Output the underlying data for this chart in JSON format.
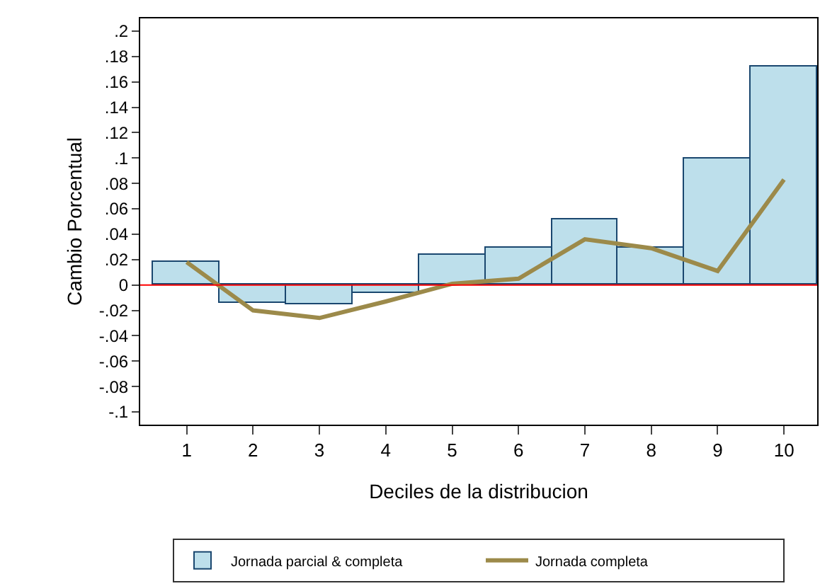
{
  "chart_data": {
    "type": "bar",
    "xlabel": "Deciles de la distribucion",
    "ylabel": "Cambio Porcentual",
    "x": [
      1,
      2,
      3,
      4,
      5,
      6,
      7,
      8,
      9,
      10
    ],
    "series": [
      {
        "name": "Jornada parcial & completa",
        "color": "#bddfeb",
        "values": [
          0.018,
          -0.014,
          -0.015,
          -0.006,
          0.024,
          0.029,
          0.052,
          0.029,
          0.1,
          0.172
        ]
      },
      {
        "name": "Jornada completa",
        "type": "line",
        "color": "#9c8a4a",
        "values": [
          0.018,
          -0.02,
          -0.026,
          -0.013,
          0.001,
          0.005,
          0.036,
          0.029,
          0.011,
          0.083
        ]
      }
    ],
    "xlim": [
      0.3,
      10.5
    ],
    "xticks": [
      1,
      2,
      3,
      4,
      5,
      6,
      7,
      8,
      9,
      10
    ],
    "ylim": [
      -0.11,
      0.21
    ],
    "yticks": [
      {
        "value": -0.1,
        "label": "-.1"
      },
      {
        "value": -0.08,
        "label": "-.08"
      },
      {
        "value": -0.06,
        "label": "-.06"
      },
      {
        "value": -0.04,
        "label": "-.04"
      },
      {
        "value": -0.02,
        "label": "-.02"
      },
      0,
      {
        "value": 0.02,
        "label": ".02"
      },
      {
        "value": 0.04,
        "label": ".04"
      },
      {
        "value": 0.06,
        "label": ".06"
      },
      {
        "value": 0.08,
        "label": ".08"
      },
      {
        "value": 0.1,
        "label": ".1"
      },
      {
        "value": 0.12,
        "label": ".12"
      },
      {
        "value": 0.14,
        "label": ".14"
      },
      {
        "value": 0.16,
        "label": ".16"
      },
      {
        "value": 0.18,
        "label": ".18"
      },
      {
        "value": 0.2,
        "label": ".2"
      }
    ],
    "ref_lines": [
      {
        "axis": "y",
        "value": 0,
        "color": "#ff0000"
      }
    ],
    "grid": false,
    "legend": "bottom"
  }
}
